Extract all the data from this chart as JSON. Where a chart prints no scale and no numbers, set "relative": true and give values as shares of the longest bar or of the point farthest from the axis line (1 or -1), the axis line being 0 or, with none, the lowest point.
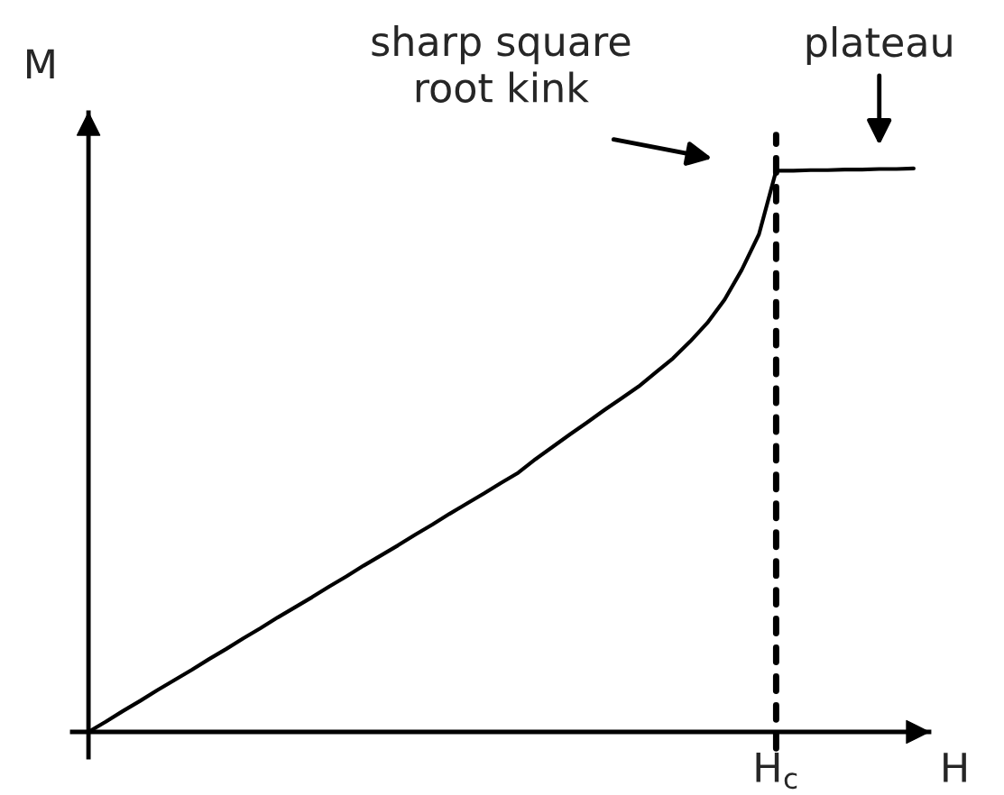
{
  "chart_data": {
    "type": "line",
    "relative": true,
    "xlabel": "H",
    "ylabel": "M",
    "categories": [
      null,
      null,
      null,
      null,
      null,
      null,
      null,
      null,
      null,
      null,
      null,
      null,
      null,
      null,
      null,
      null,
      null,
      null,
      null,
      null,
      null,
      null,
      null,
      null,
      null,
      null,
      null,
      null,
      null,
      null,
      null,
      null,
      null,
      null,
      null,
      null,
      null,
      null,
      null,
      null,
      null,
      null,
      null,
      null,
      null,
      null,
      null,
      null,
      null
    ],
    "series": [
      {
        "color": "#000000",
        "values": [
          0,
          0.018,
          0.037,
          0.055,
          0.074,
          0.092,
          0.11,
          0.129,
          0.147,
          0.166,
          0.184,
          0.203,
          0.221,
          0.239,
          0.258,
          0.276,
          0.295,
          0.313,
          0.331,
          0.35,
          0.368,
          0.387,
          0.405,
          0.423,
          0.442,
          0.46,
          0.484,
          0.506,
          0.528,
          0.549,
          0.571,
          0.592,
          0.613,
          0.638,
          0.663,
          0.693,
          0.726,
          0.767,
          0.82,
          0.883,
          0.996,
          0.996,
          0.997,
          0.997,
          0.998,
          0.998,
          0.999,
          0.999,
          1
        ]
      }
    ],
    "annotations": [
      "sharp square\nroot kink",
      {
        "text": "plateau",
        "y": 0.999
      },
      "H$_{c}$"
    ]
  }
}
